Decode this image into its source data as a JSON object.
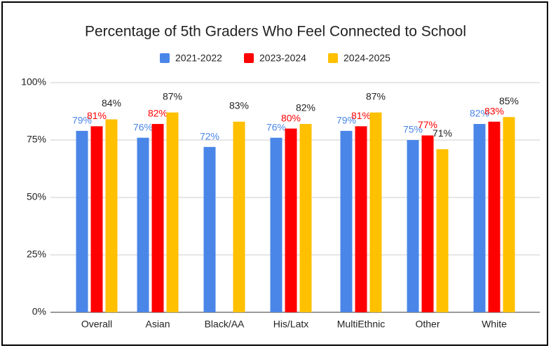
{
  "chart_data": {
    "type": "bar",
    "title": "Percentage of 5th Graders Who Feel Connected to School",
    "categories": [
      "Overall",
      "Asian",
      "Black/AA",
      "His/Latx",
      "MultiEthnic",
      "Other",
      "White"
    ],
    "series": [
      {
        "name": "2021-2022",
        "color": "#4a86e8",
        "values": [
          79,
          76,
          72,
          76,
          79,
          75,
          82
        ],
        "value_labels": [
          "79%",
          "76%",
          "72%",
          "76%",
          "79%",
          "75%",
          "82%"
        ]
      },
      {
        "name": "2023-2024",
        "color": "#ff0000",
        "values": [
          81,
          82,
          null,
          80,
          81,
          77,
          83
        ],
        "value_labels": [
          "81%",
          "82%",
          null,
          "80%",
          "81%",
          "77%",
          "83%"
        ]
      },
      {
        "name": "2024-2025",
        "color": "#ffc000",
        "values": [
          84,
          87,
          83,
          82,
          87,
          71,
          85
        ],
        "value_labels": [
          "84%",
          "87%",
          "83%",
          "82%",
          "87%",
          "71%",
          "85%"
        ]
      }
    ],
    "ylim": [
      0,
      100
    ],
    "yticks": [
      {
        "value": 0,
        "label": "0%"
      },
      {
        "value": 25,
        "label": "25%"
      },
      {
        "value": 50,
        "label": "50%"
      },
      {
        "value": 75,
        "label": "75%"
      },
      {
        "value": 100,
        "label": "100%"
      }
    ],
    "grid": true,
    "legend": "top"
  }
}
